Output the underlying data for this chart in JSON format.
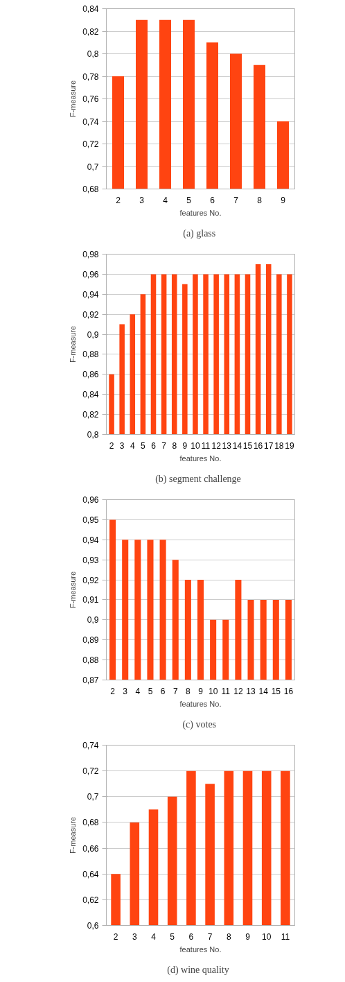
{
  "chart_data": [
    {
      "type": "bar",
      "xlabel": "features No.",
      "ylabel": "F-measure",
      "annotations": [
        "(a)  glass"
      ],
      "categories": [
        "2",
        "3",
        "4",
        "5",
        "6",
        "7",
        "8",
        "9"
      ],
      "color": "#ff4411",
      "values": [
        0.78,
        0.83,
        0.83,
        0.83,
        0.81,
        0.8,
        0.79,
        0.74
      ],
      "ylim": [
        0.68,
        0.84
      ],
      "yticks": [
        {
          "value": 0.68,
          "label": "0,68"
        },
        {
          "value": 0.7,
          "label": "0,7"
        },
        {
          "value": 0.72,
          "label": "0,72"
        },
        {
          "value": 0.74,
          "label": "0,74"
        },
        {
          "value": 0.76,
          "label": "0,76"
        },
        {
          "value": 0.78,
          "label": "0,78"
        },
        {
          "value": 0.8,
          "label": "0,8"
        },
        {
          "value": 0.82,
          "label": "0,82"
        },
        {
          "value": 0.84,
          "label": "0,84"
        }
      ],
      "grid": "y"
    },
    {
      "type": "bar",
      "xlabel": "features No.",
      "ylabel": "F-measure",
      "annotations": [
        "(b)  segment  challenge"
      ],
      "categories": [
        "2",
        "3",
        "4",
        "5",
        "6",
        "7",
        "8",
        "9",
        "10",
        "11",
        "12",
        "13",
        "14",
        "15",
        "16",
        "17",
        "18",
        "19"
      ],
      "color": "#ff4411",
      "values": [
        0.86,
        0.91,
        0.92,
        0.94,
        0.96,
        0.96,
        0.96,
        0.95,
        0.96,
        0.96,
        0.96,
        0.96,
        0.96,
        0.96,
        0.97,
        0.97,
        0.96,
        0.96
      ],
      "ylim": [
        0.8,
        0.98
      ],
      "yticks": [
        {
          "value": 0.8,
          "label": "0,8"
        },
        {
          "value": 0.82,
          "label": "0,82"
        },
        {
          "value": 0.84,
          "label": "0,84"
        },
        {
          "value": 0.86,
          "label": "0,86"
        },
        {
          "value": 0.88,
          "label": "0,88"
        },
        {
          "value": 0.9,
          "label": "0,9"
        },
        {
          "value": 0.92,
          "label": "0,92"
        },
        {
          "value": 0.94,
          "label": "0,94"
        },
        {
          "value": 0.96,
          "label": "0,96"
        },
        {
          "value": 0.98,
          "label": "0,98"
        }
      ],
      "grid": "y"
    },
    {
      "type": "bar",
      "xlabel": "features No.",
      "ylabel": "F-measure",
      "annotations": [
        "(c)  votes"
      ],
      "categories": [
        "2",
        "3",
        "4",
        "5",
        "6",
        "7",
        "8",
        "9",
        "10",
        "11",
        "12",
        "13",
        "14",
        "15",
        "16"
      ],
      "color": "#ff4411",
      "values": [
        0.95,
        0.94,
        0.94,
        0.94,
        0.94,
        0.93,
        0.92,
        0.92,
        0.9,
        0.9,
        0.92,
        0.91,
        0.91,
        0.91,
        0.91
      ],
      "ylim": [
        0.87,
        0.96
      ],
      "yticks": [
        {
          "value": 0.87,
          "label": "0,87"
        },
        {
          "value": 0.88,
          "label": "0,88"
        },
        {
          "value": 0.89,
          "label": "0,89"
        },
        {
          "value": 0.9,
          "label": "0,9"
        },
        {
          "value": 0.91,
          "label": "0,91"
        },
        {
          "value": 0.92,
          "label": "0,92"
        },
        {
          "value": 0.93,
          "label": "0,93"
        },
        {
          "value": 0.94,
          "label": "0,94"
        },
        {
          "value": 0.95,
          "label": "0,95"
        },
        {
          "value": 0.96,
          "label": "0,96"
        }
      ],
      "grid": "y"
    },
    {
      "type": "bar",
      "xlabel": "features No.",
      "ylabel": "F-measure",
      "annotations": [
        "(d)  wine  quality"
      ],
      "categories": [
        "2",
        "3",
        "4",
        "5",
        "6",
        "7",
        "8",
        "9",
        "10",
        "11"
      ],
      "color": "#ff4411",
      "values": [
        0.64,
        0.68,
        0.69,
        0.7,
        0.72,
        0.71,
        0.72,
        0.72,
        0.72,
        0.72
      ],
      "ylim": [
        0.6,
        0.74
      ],
      "yticks": [
        {
          "value": 0.6,
          "label": "0,6"
        },
        {
          "value": 0.62,
          "label": "0,62"
        },
        {
          "value": 0.64,
          "label": "0,64"
        },
        {
          "value": 0.66,
          "label": "0,66"
        },
        {
          "value": 0.68,
          "label": "0,68"
        },
        {
          "value": 0.7,
          "label": "0,7"
        },
        {
          "value": 0.72,
          "label": "0,72"
        },
        {
          "value": 0.74,
          "label": "0,74"
        }
      ],
      "grid": "y"
    }
  ]
}
